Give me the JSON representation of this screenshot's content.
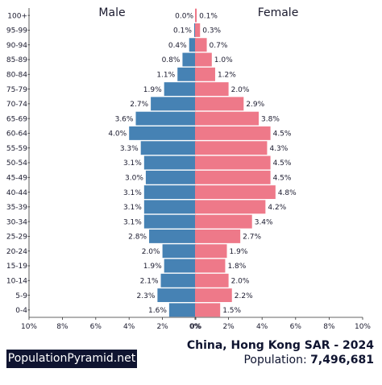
{
  "chart_data": {
    "type": "bar",
    "subtype": "population-pyramid",
    "title": "China, Hong Kong SAR - 2024",
    "categories": [
      "100+",
      "95-99",
      "90-94",
      "85-89",
      "80-84",
      "75-79",
      "70-74",
      "65-69",
      "60-64",
      "55-59",
      "50-54",
      "45-49",
      "40-44",
      "35-39",
      "30-34",
      "25-29",
      "20-24",
      "15-19",
      "10-14",
      "5-9",
      "0-4"
    ],
    "series": [
      {
        "name": "Male",
        "color": "#4682b4",
        "values": [
          0.0,
          0.1,
          0.4,
          0.8,
          1.1,
          1.9,
          2.7,
          3.6,
          4.0,
          3.3,
          3.1,
          3.0,
          3.1,
          3.1,
          3.1,
          2.8,
          2.0,
          1.9,
          2.1,
          2.3,
          1.6
        ],
        "labels": [
          "0.0%",
          "0.1%",
          "0.4%",
          "0.8%",
          "1.1%",
          "1.9%",
          "2.7%",
          "3.6%",
          "4.0%",
          "3.3%",
          "3.1%",
          "3.0%",
          "3.1%",
          "3.1%",
          "3.1%",
          "2.8%",
          "2.0%",
          "1.9%",
          "2.1%",
          "2.3%",
          "1.6%"
        ]
      },
      {
        "name": "Female",
        "color": "#ee7989",
        "values": [
          0.1,
          0.3,
          0.7,
          1.0,
          1.2,
          2.0,
          2.9,
          3.8,
          4.5,
          4.3,
          4.5,
          4.5,
          4.8,
          4.2,
          3.4,
          2.7,
          1.9,
          1.8,
          2.0,
          2.2,
          1.5
        ],
        "labels": [
          "0.1%",
          "0.3%",
          "0.7%",
          "1.0%",
          "1.2%",
          "2.0%",
          "2.9%",
          "3.8%",
          "4.5%",
          "4.3%",
          "4.5%",
          "4.5%",
          "4.8%",
          "4.2%",
          "3.4%",
          "2.7%",
          "1.9%",
          "1.8%",
          "2.0%",
          "2.2%",
          "1.5%"
        ]
      }
    ],
    "xlim": [
      -10,
      10
    ],
    "x_ticks_left": [
      "10%",
      "8%",
      "6%",
      "4%",
      "2%",
      "0%"
    ],
    "x_ticks_right": [
      "0%",
      "2%",
      "4%",
      "6%",
      "8%",
      "10%"
    ],
    "grid": false
  },
  "footer": {
    "brand": "PopulationPyramid.net",
    "title": "China, Hong Kong SAR - 2024",
    "population_label": "Population:",
    "population_value": "7,496,681"
  }
}
